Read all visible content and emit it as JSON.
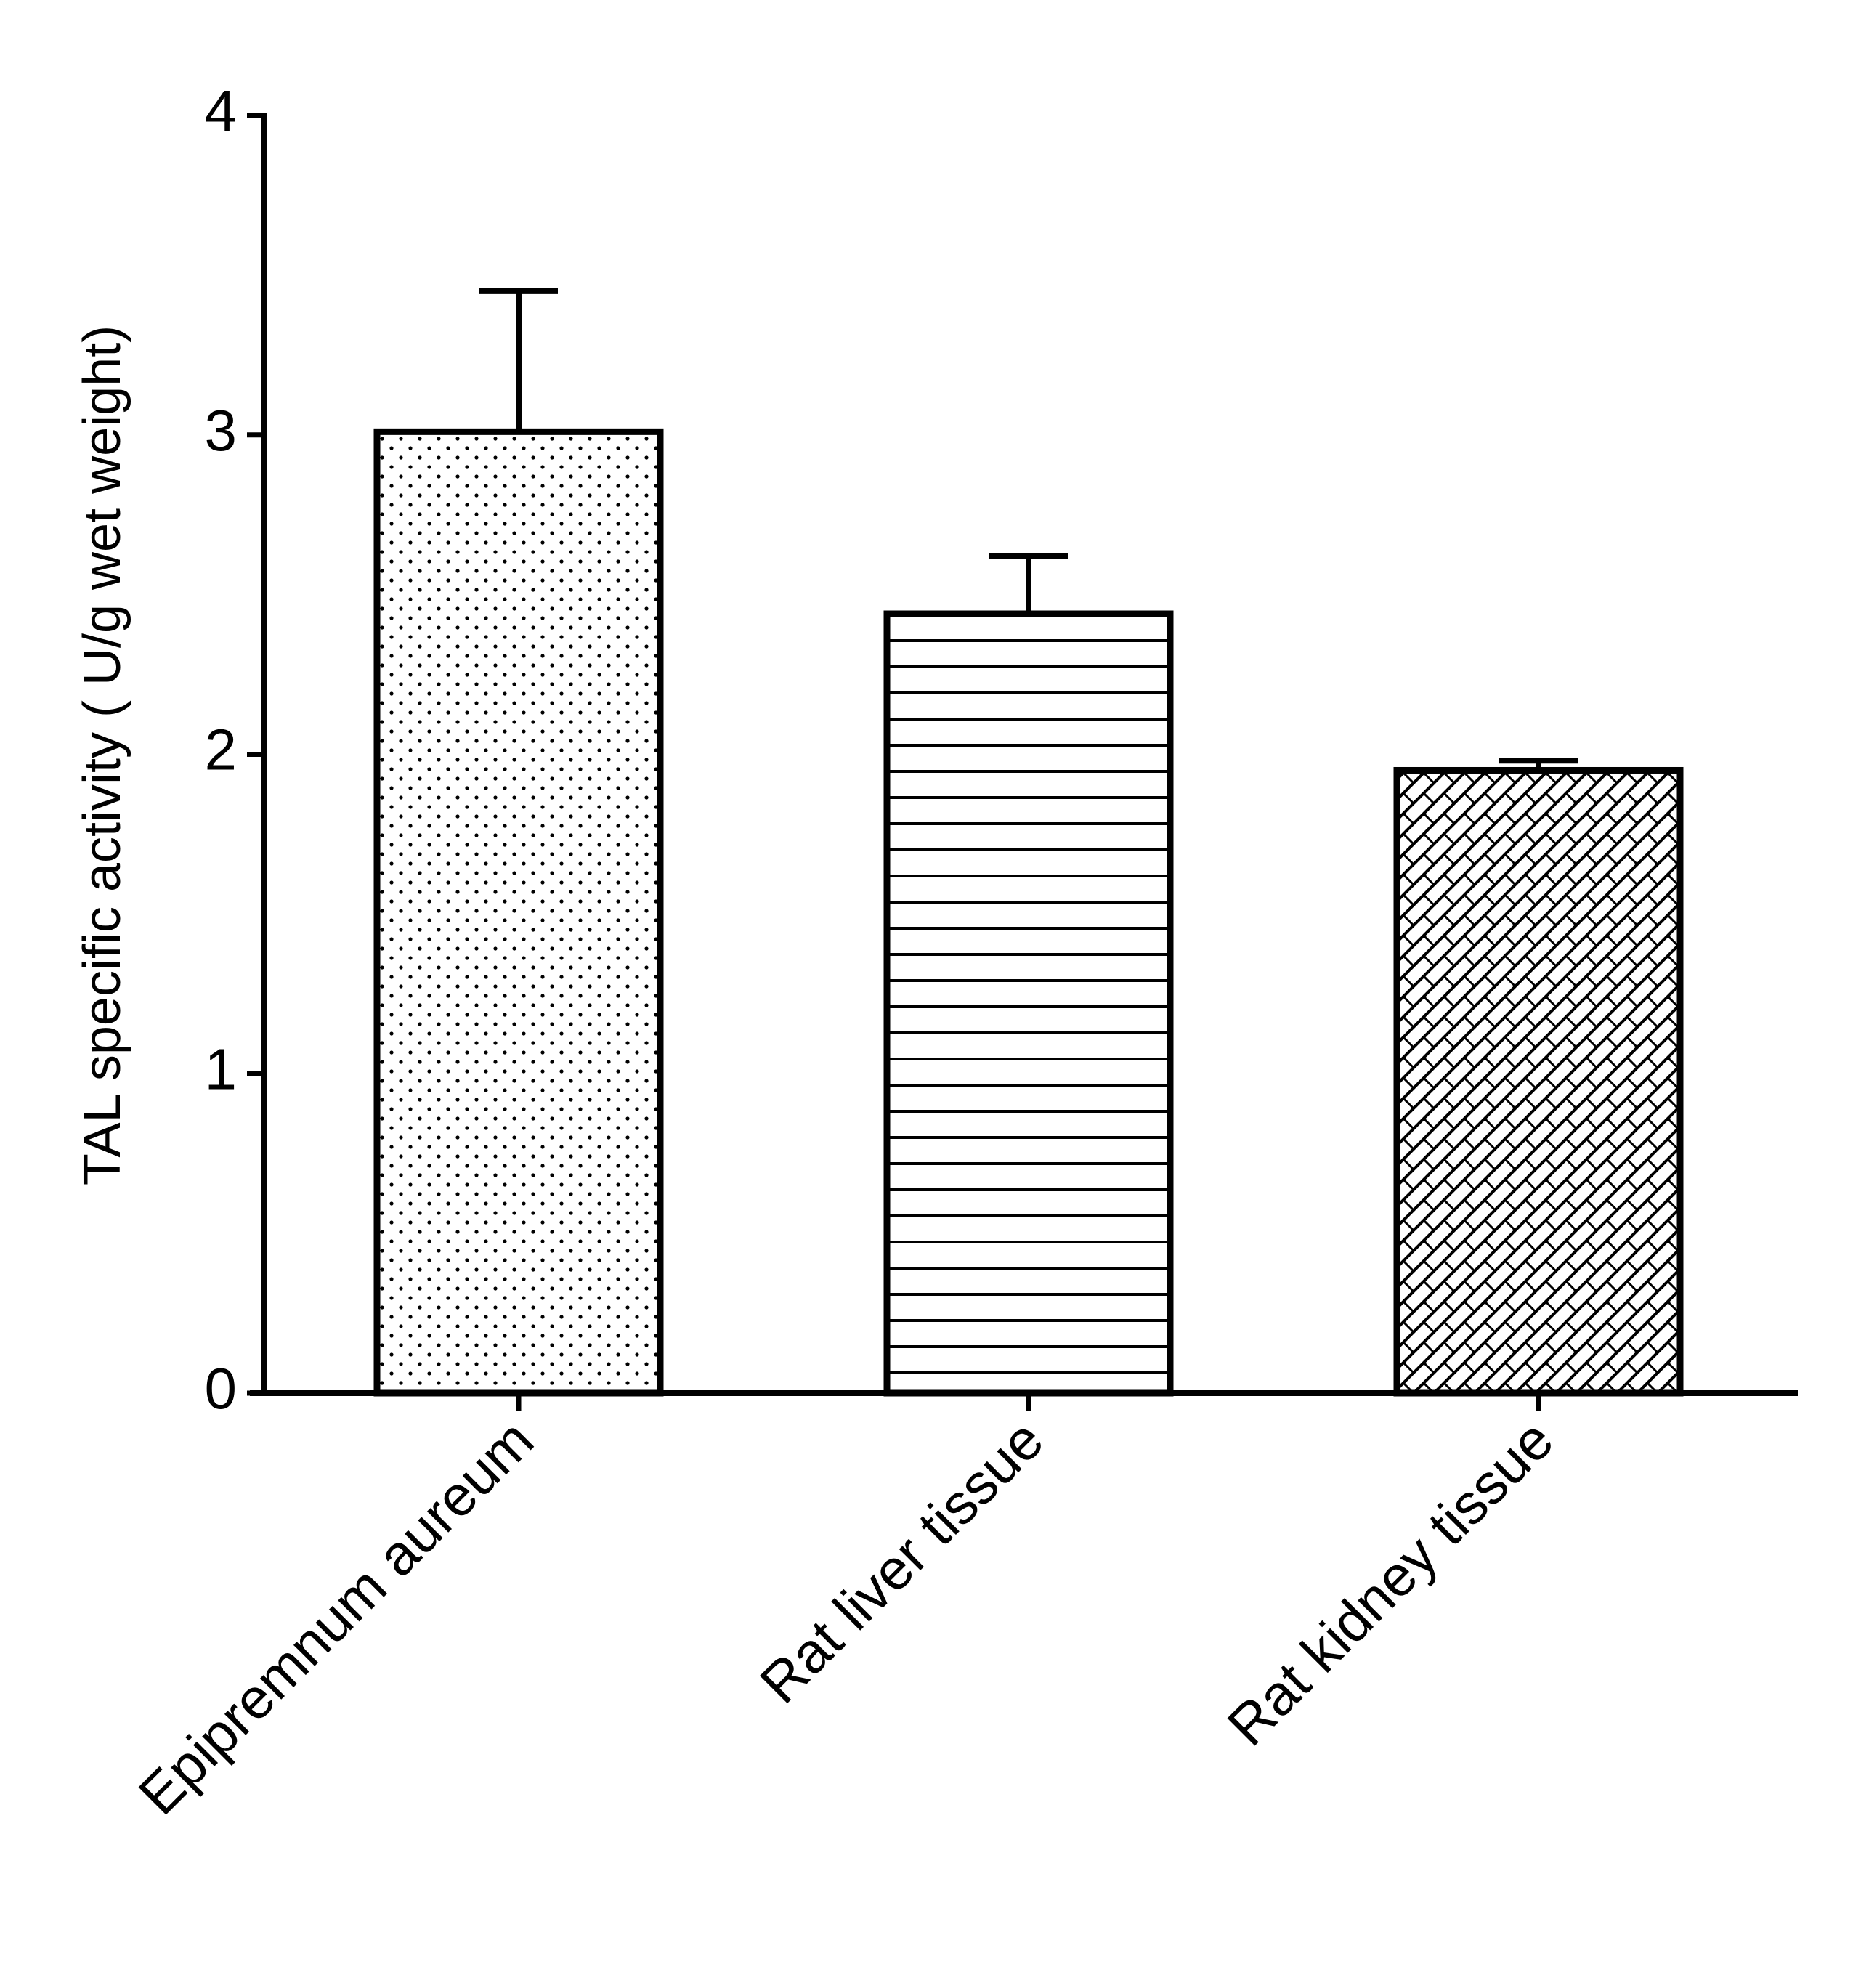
{
  "chart_data": {
    "type": "bar",
    "y_label": "TAL specific activity ( U/g wet weight)",
    "categories": [
      "Epipremnum aureum",
      "Rat liver tissue",
      "Rat kidney tissue"
    ],
    "values": [
      3.01,
      2.44,
      1.95
    ],
    "errors": [
      0.44,
      0.18,
      0.03
    ],
    "color": "#000000",
    "ylim": [
      0,
      4
    ],
    "yticks": [
      0,
      1,
      2,
      3,
      4
    ],
    "grid": false
  }
}
